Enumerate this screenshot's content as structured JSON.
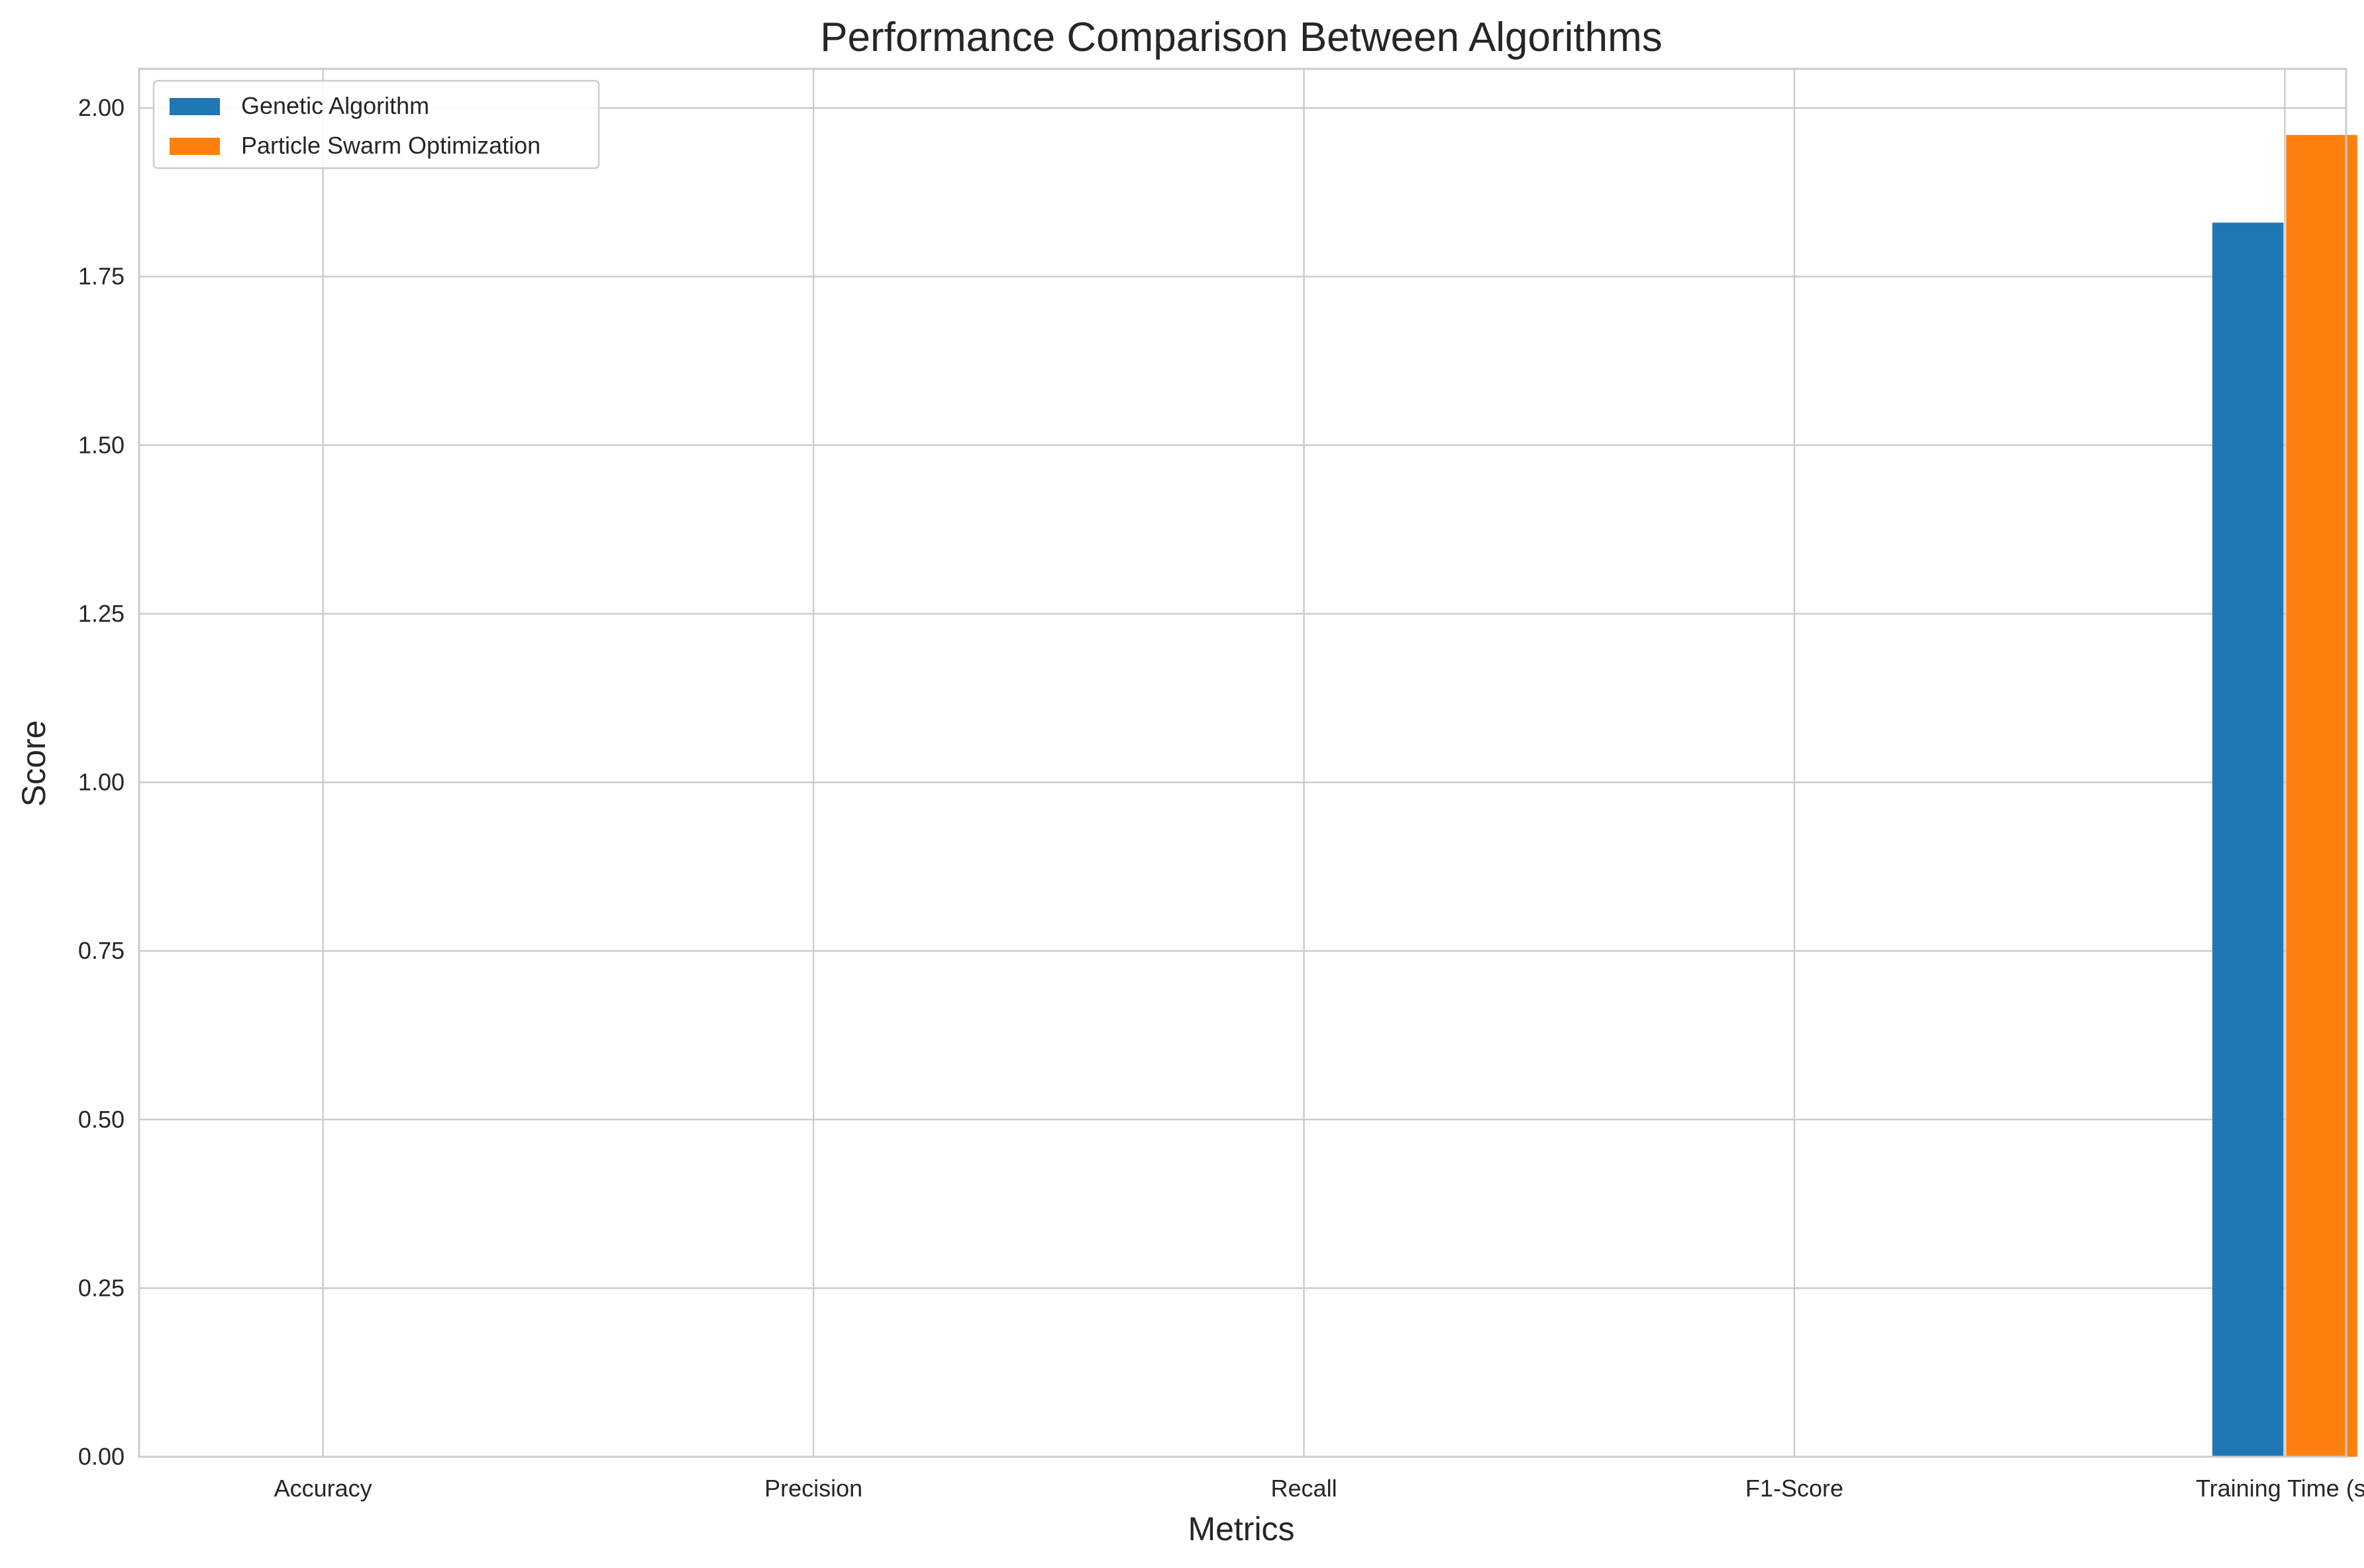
{
  "chart_data": {
    "type": "bar",
    "title": "Performance Comparison Between Algorithms",
    "xlabel": "Metrics",
    "ylabel": "Score",
    "categories": [
      "Accuracy",
      "Precision",
      "Recall",
      "F1-Score",
      "Training Time (s)"
    ],
    "series": [
      {
        "name": "Genetic Algorithm",
        "color": "#1f77b4",
        "values": [
          0,
          0,
          0,
          0,
          1.83
        ]
      },
      {
        "name": "Particle Swarm Optimization",
        "color": "#ff7f0e",
        "values": [
          0,
          0,
          0,
          0,
          1.96
        ]
      }
    ],
    "ylim": [
      0,
      2.058
    ],
    "yticks": [
      0.0,
      0.25,
      0.5,
      0.75,
      1.0,
      1.25,
      1.5,
      1.75,
      2.0
    ],
    "ytick_labels": [
      "0.00",
      "0.25",
      "0.50",
      "0.75",
      "1.00",
      "1.25",
      "1.50",
      "1.75",
      "2.00"
    ],
    "grid": true,
    "legend_position": "top-left"
  }
}
